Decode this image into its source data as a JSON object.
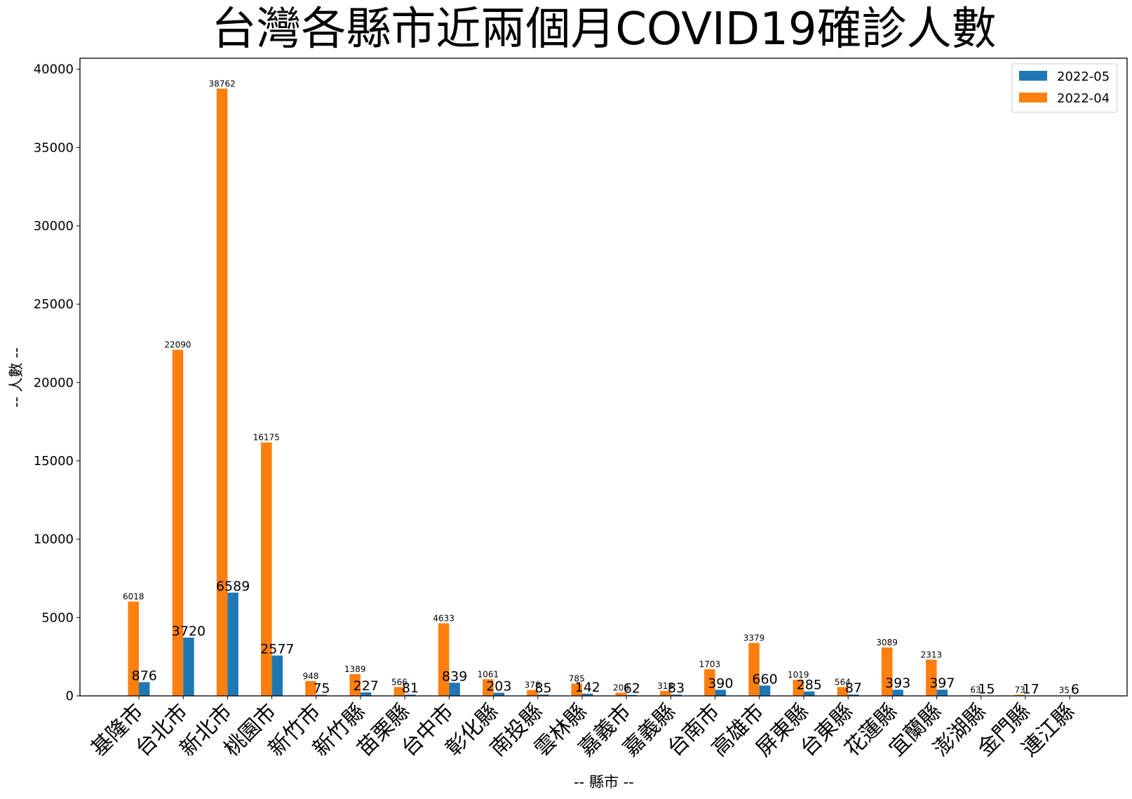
{
  "chart_data": {
    "type": "bar",
    "title": "台灣各縣市近兩個月COVID19確診人數",
    "xlabel": "-- 縣市 --",
    "ylabel": "-- 人數 --",
    "ylim": [
      0,
      40700
    ],
    "yticks": [
      "0",
      "5000",
      "10000",
      "15000",
      "20000",
      "25000",
      "30000",
      "35000",
      "40000"
    ],
    "grid": false,
    "legend_position": "top-right",
    "categories": [
      "基隆市",
      "台北市",
      "新北市",
      "桃園市",
      "新竹市",
      "新竹縣",
      "苗栗縣",
      "台中市",
      "彰化縣",
      "南投縣",
      "雲林縣",
      "嘉義市",
      "嘉義縣",
      "台南市",
      "高雄市",
      "屏東縣",
      "台東縣",
      "花蓮縣",
      "宜蘭縣",
      "澎湖縣",
      "金門縣",
      "連江縣"
    ],
    "series": [
      {
        "name": "2022-05",
        "color": "#1f77b4",
        "values": [
          876,
          3720,
          6589,
          2577,
          75,
          227,
          81,
          839,
          203,
          85,
          142,
          62,
          83,
          390,
          660,
          285,
          87,
          393,
          397,
          15,
          17,
          6
        ],
        "labels": [
          "876",
          "3720",
          "6589",
          "2577",
          "75",
          "227",
          "81",
          "839",
          "203",
          "85",
          "142",
          "62",
          "83",
          "390",
          "660",
          "285",
          "87",
          "393",
          "397",
          "15",
          "17",
          "6"
        ]
      },
      {
        "name": "2022-04",
        "color": "#ff7f0e",
        "values": [
          6018,
          22090,
          38762,
          16175,
          948,
          1389,
          566,
          4633,
          1061,
          378,
          785,
          208,
          318,
          1703,
          3379,
          1019,
          564,
          3089,
          2313,
          63,
          73,
          35
        ],
        "labels": [
          "6018",
          "22090",
          "38762",
          "16175",
          "948",
          "1389",
          "566",
          "4633",
          "1061",
          "378",
          "785",
          "208",
          "318",
          "1703",
          "3379",
          "1019",
          "564",
          "3089",
          "2313",
          "63",
          "73",
          "35"
        ]
      }
    ]
  }
}
